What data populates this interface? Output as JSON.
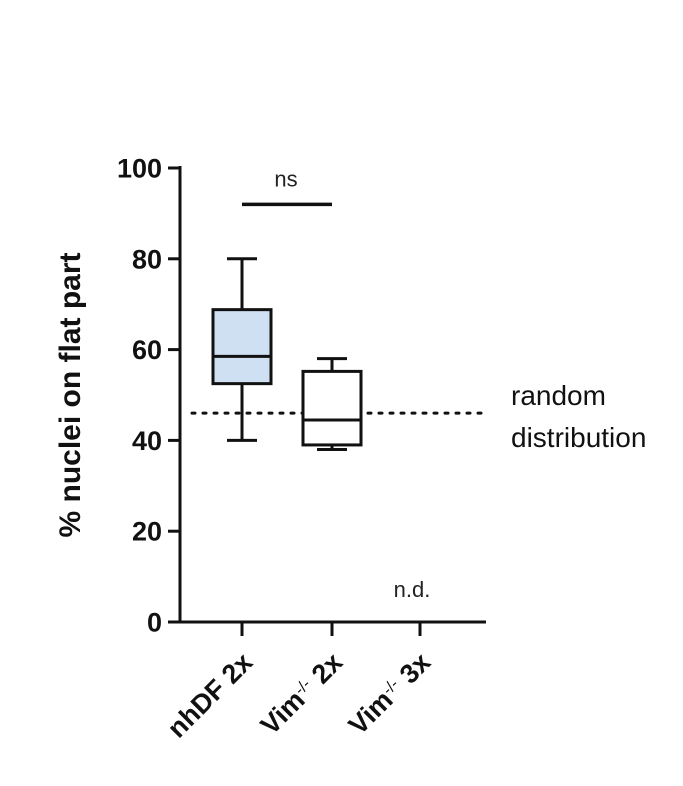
{
  "chart_data": {
    "type": "box",
    "ylabel": "% nuclei on flat part",
    "ylim": [
      0,
      100
    ],
    "yticks": [
      0,
      20,
      40,
      60,
      80,
      100
    ],
    "categories": [
      "nhDF 2x",
      "Vim-/- 2x",
      "Vim-/- 3x"
    ],
    "category_parts": [
      {
        "base": "nhDF 2x",
        "sup": ""
      },
      {
        "base": "Vim",
        "sup": "-/-",
        "rest": "2x"
      },
      {
        "base": "Vim",
        "sup": "-/-",
        "rest": "3x"
      }
    ],
    "boxes": [
      {
        "category": "nhDF 2x",
        "min": 40,
        "q1": 52.5,
        "median": 58.5,
        "q3": 68.8,
        "max": 80,
        "fill": "#cfe0f3"
      },
      {
        "category": "Vim-/- 2x",
        "min": 38,
        "q1": 39,
        "median": 44.5,
        "q3": 55.2,
        "max": 58,
        "fill": "#ffffff"
      },
      {
        "category": "Vim-/- 3x",
        "value": null,
        "label": "n.d."
      }
    ],
    "reference_line": {
      "y": 46,
      "style": "dotted",
      "label_lines": [
        "random",
        "distribution"
      ]
    },
    "significance": {
      "between": [
        "nhDF 2x",
        "Vim-/- 2x"
      ],
      "y": 92,
      "label": "ns"
    }
  }
}
